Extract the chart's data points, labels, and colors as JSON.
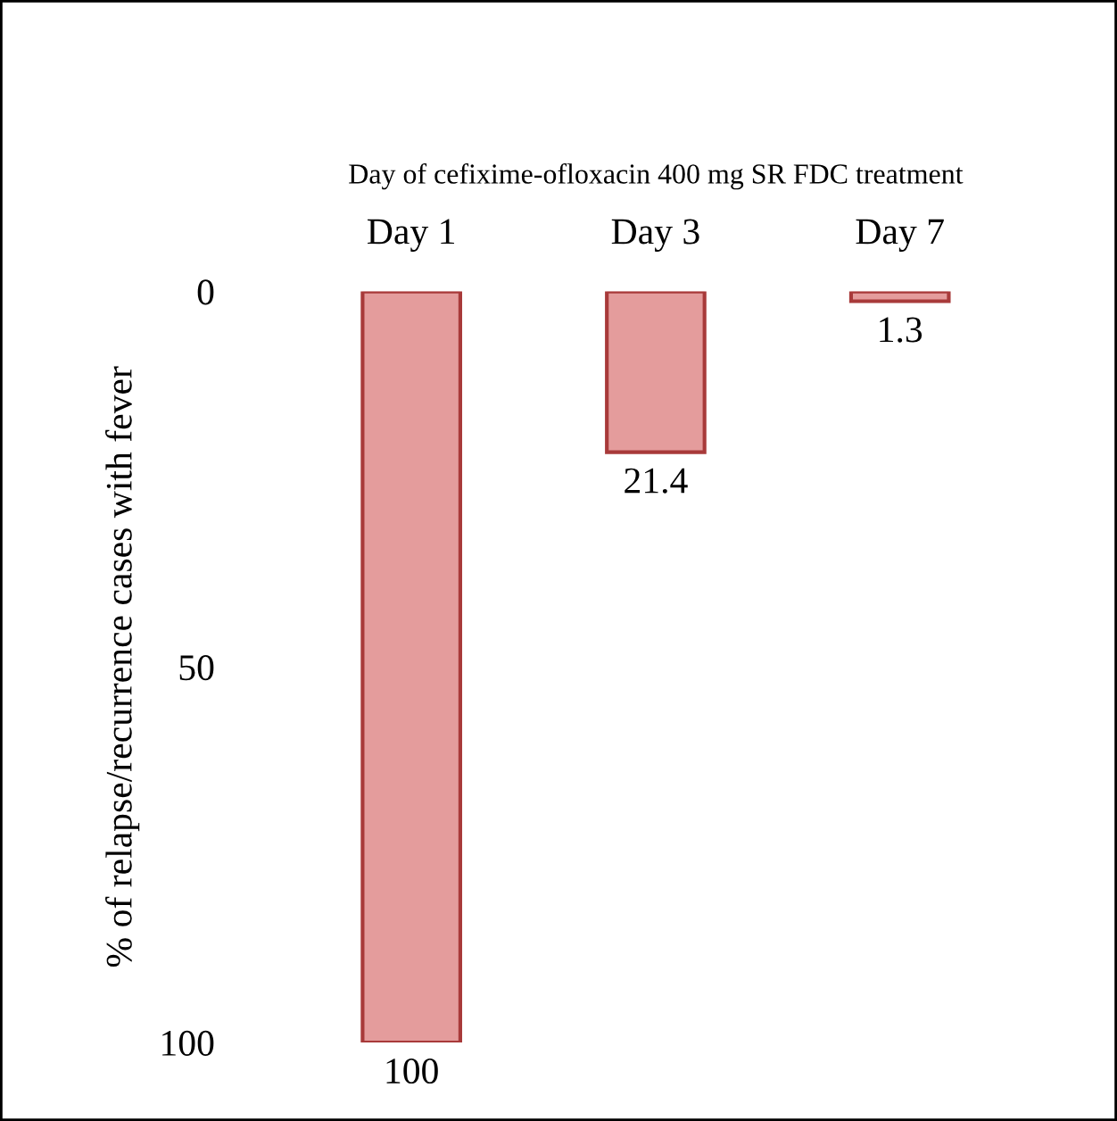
{
  "chart_data": {
    "type": "bar",
    "xlabel": "Day of cefixime-ofloxacin 400 mg SR FDC treatment",
    "ylabel": "% of relapse/recurrence cases with fever",
    "categories": [
      "Day 1",
      "Day 3",
      "Day 7"
    ],
    "values": [
      100,
      21.4,
      1.3
    ],
    "color": "#e49c9c",
    "ylim": [
      100,
      0
    ],
    "yticks": [
      0,
      50,
      100
    ],
    "grid": false,
    "data_labels": true
  }
}
